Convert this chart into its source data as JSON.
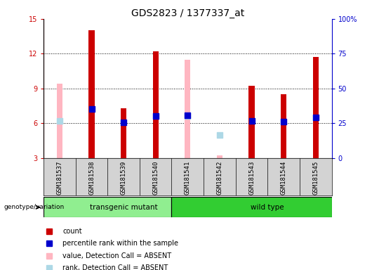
{
  "title": "GDS2823 / 1377337_at",
  "samples": [
    "GSM181537",
    "GSM181538",
    "GSM181539",
    "GSM181540",
    "GSM181541",
    "GSM181542",
    "GSM181543",
    "GSM181544",
    "GSM181545"
  ],
  "count_values": [
    null,
    14.0,
    7.3,
    12.2,
    null,
    null,
    9.2,
    8.5,
    11.7
  ],
  "rank_values": [
    null,
    7.2,
    6.05,
    6.6,
    6.65,
    null,
    6.2,
    6.15,
    6.5
  ],
  "absent_value_values": [
    9.4,
    null,
    null,
    null,
    11.5,
    3.2,
    null,
    null,
    null
  ],
  "absent_rank_values": [
    6.2,
    null,
    null,
    null,
    6.6,
    5.0,
    null,
    null,
    null
  ],
  "groups": [
    "transgenic mutant",
    "transgenic mutant",
    "transgenic mutant",
    "transgenic mutant",
    "wild type",
    "wild type",
    "wild type",
    "wild type",
    "wild type"
  ],
  "group_colors": {
    "transgenic mutant": "#90EE90",
    "wild type": "#32CD32"
  },
  "ylim_left": [
    3,
    15
  ],
  "ylim_right": [
    0,
    100
  ],
  "yticks_left": [
    3,
    6,
    9,
    12,
    15
  ],
  "yticks_right": [
    0,
    25,
    50,
    75,
    100
  ],
  "yticklabels_right": [
    "0",
    "25",
    "50",
    "75",
    "100%"
  ],
  "count_color": "#CC0000",
  "rank_color": "#0000CC",
  "absent_value_color": "#FFB6C1",
  "absent_rank_color": "#ADD8E6",
  "bar_width": 0.18,
  "dot_size": 28,
  "title_fontsize": 10,
  "tick_fontsize": 7,
  "label_fontsize": 7.5,
  "bg_xtick": "#d3d3d3",
  "legend_items": [
    "count",
    "percentile rank within the sample",
    "value, Detection Call = ABSENT",
    "rank, Detection Call = ABSENT"
  ],
  "legend_colors": [
    "#CC0000",
    "#0000CC",
    "#FFB6C1",
    "#ADD8E6"
  ]
}
